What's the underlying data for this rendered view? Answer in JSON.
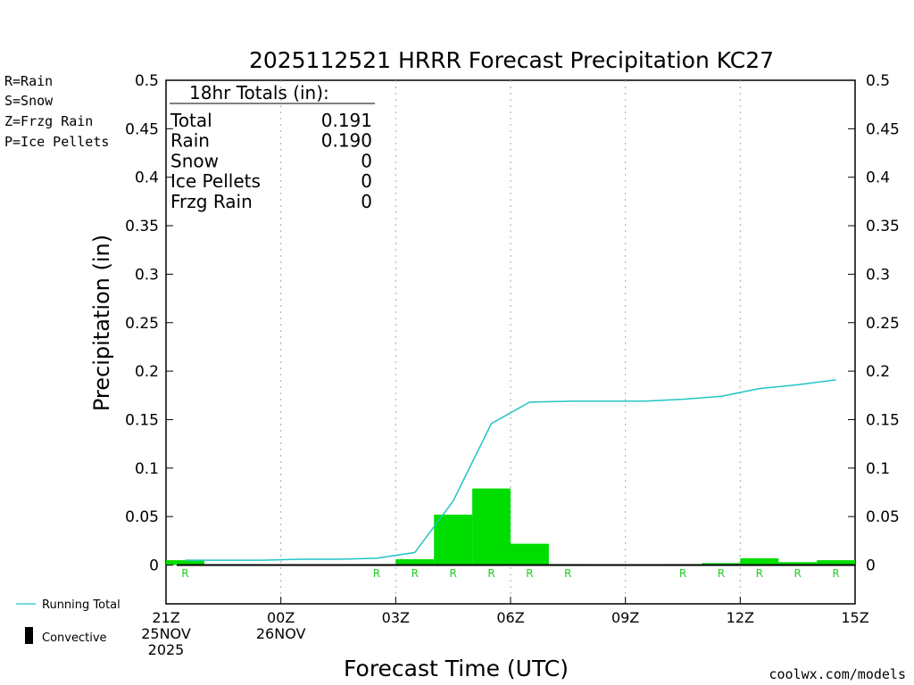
{
  "title": "2025112521 HRRR Forecast Precipitation KC27",
  "legend_left": {
    "rain": "R=Rain",
    "snow": "S=Snow",
    "frzg": "Z=Frzg Rain",
    "ice": "P=Ice Pellets",
    "rain_color": "#22cc22",
    "snow_color": "#3333ee",
    "frzg_color": "#ff8c1a",
    "ice_color": "#e0198c"
  },
  "totals_box": {
    "heading": "18hr Totals (in):",
    "rows": [
      {
        "label": "Total",
        "value": "0.191"
      },
      {
        "label": "Rain",
        "value": "0.190"
      },
      {
        "label": "Snow",
        "value": "0"
      },
      {
        "label": "Ice Pellets",
        "value": "0"
      },
      {
        "label": "Frzg Rain",
        "value": "0"
      }
    ]
  },
  "bottom_legend": {
    "running_total": "Running Total",
    "convective": "Convective"
  },
  "credit": "coolwx.com/models",
  "colors": {
    "bar": "#00dd00",
    "running_total": "#22c4c4",
    "rain_marker": "#22cc22",
    "grid": "#aaaaaa"
  },
  "chart_data": {
    "type": "bar",
    "title": "2025112521 HRRR Forecast Precipitation KC27",
    "xlabel": "Forecast Time (UTC)",
    "ylabel": "Precipitation (in)",
    "ylim": [
      -0.04,
      0.5
    ],
    "xlim": [
      0,
      18
    ],
    "y_ticks": [
      0,
      0.05,
      0.1,
      0.15,
      0.2,
      0.25,
      0.3,
      0.35,
      0.4,
      0.45,
      0.5
    ],
    "y_tick_labels": [
      "0",
      "0.05",
      "0.1",
      "0.15",
      "0.2",
      "0.25",
      "0.3",
      "0.35",
      "0.4",
      "0.45",
      "0.5"
    ],
    "x_ticks": [
      {
        "x": 0,
        "lines": [
          "21Z",
          "25NOV",
          "2025"
        ]
      },
      {
        "x": 3,
        "lines": [
          "00Z",
          "26NOV"
        ]
      },
      {
        "x": 6,
        "lines": [
          "03Z"
        ]
      },
      {
        "x": 9,
        "lines": [
          "06Z"
        ]
      },
      {
        "x": 12,
        "lines": [
          "09Z"
        ]
      },
      {
        "x": 15,
        "lines": [
          "12Z"
        ]
      },
      {
        "x": 18,
        "lines": [
          "15Z"
        ]
      }
    ],
    "grid_x": [
      3,
      6,
      9,
      12,
      15
    ],
    "bars": [
      {
        "hour": 1,
        "value": 0.005
      },
      {
        "hour": 2,
        "value": 0.0
      },
      {
        "hour": 3,
        "value": 0.0
      },
      {
        "hour": 4,
        "value": 0.0
      },
      {
        "hour": 5,
        "value": 0.0
      },
      {
        "hour": 6,
        "value": 0.001
      },
      {
        "hour": 7,
        "value": 0.006
      },
      {
        "hour": 8,
        "value": 0.052
      },
      {
        "hour": 9,
        "value": 0.079
      },
      {
        "hour": 10,
        "value": 0.022
      },
      {
        "hour": 11,
        "value": 0.001
      },
      {
        "hour": 12,
        "value": 0.0
      },
      {
        "hour": 13,
        "value": 0.0
      },
      {
        "hour": 14,
        "value": 0.001
      },
      {
        "hour": 15,
        "value": 0.002
      },
      {
        "hour": 16,
        "value": 0.007
      },
      {
        "hour": 17,
        "value": 0.003
      },
      {
        "hour": 18,
        "value": 0.005
      }
    ],
    "running_total": {
      "name": "Running Total",
      "x": [
        1,
        2,
        3,
        4,
        5,
        6,
        7,
        8,
        9,
        10,
        11,
        12,
        13,
        14,
        15,
        16,
        17,
        18
      ],
      "y": [
        0.005,
        0.005,
        0.005,
        0.006,
        0.006,
        0.007,
        0.013,
        0.066,
        0.146,
        0.168,
        0.169,
        0.169,
        0.169,
        0.171,
        0.174,
        0.182,
        0.186,
        0.191
      ]
    },
    "precip_type_markers": [
      {
        "hour": 1,
        "label": "R"
      },
      {
        "hour": 6,
        "label": "R"
      },
      {
        "hour": 7,
        "label": "R"
      },
      {
        "hour": 8,
        "label": "R"
      },
      {
        "hour": 9,
        "label": "R"
      },
      {
        "hour": 10,
        "label": "R"
      },
      {
        "hour": 11,
        "label": "R"
      },
      {
        "hour": 14,
        "label": "R"
      },
      {
        "hour": 15,
        "label": "R"
      },
      {
        "hour": 16,
        "label": "R"
      },
      {
        "hour": 17,
        "label": "R"
      },
      {
        "hour": 18,
        "label": "R"
      }
    ]
  }
}
